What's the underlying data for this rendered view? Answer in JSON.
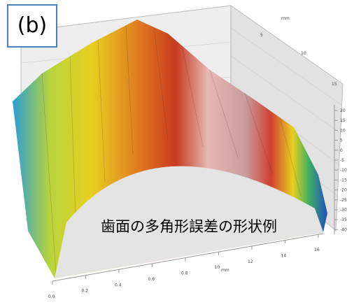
{
  "figure": {
    "panel_label": "(b)",
    "caption": "歯面の多角形誤差の形状例",
    "z_axis_ticks": [
      "20",
      "15",
      "10",
      "5",
      "0",
      "-5",
      "-10",
      "-15",
      "-20",
      "-25",
      "-30",
      "-35",
      "-40"
    ],
    "back_axis_ticks": [
      "5",
      "10",
      "15"
    ],
    "back_axis_unit": "mm",
    "front_axis_ticks": [
      "0.0",
      "0.2",
      "0.4",
      "0.6",
      "0.8",
      "10",
      "12",
      "14",
      "16"
    ],
    "front_axis_unit": "mm"
  }
}
